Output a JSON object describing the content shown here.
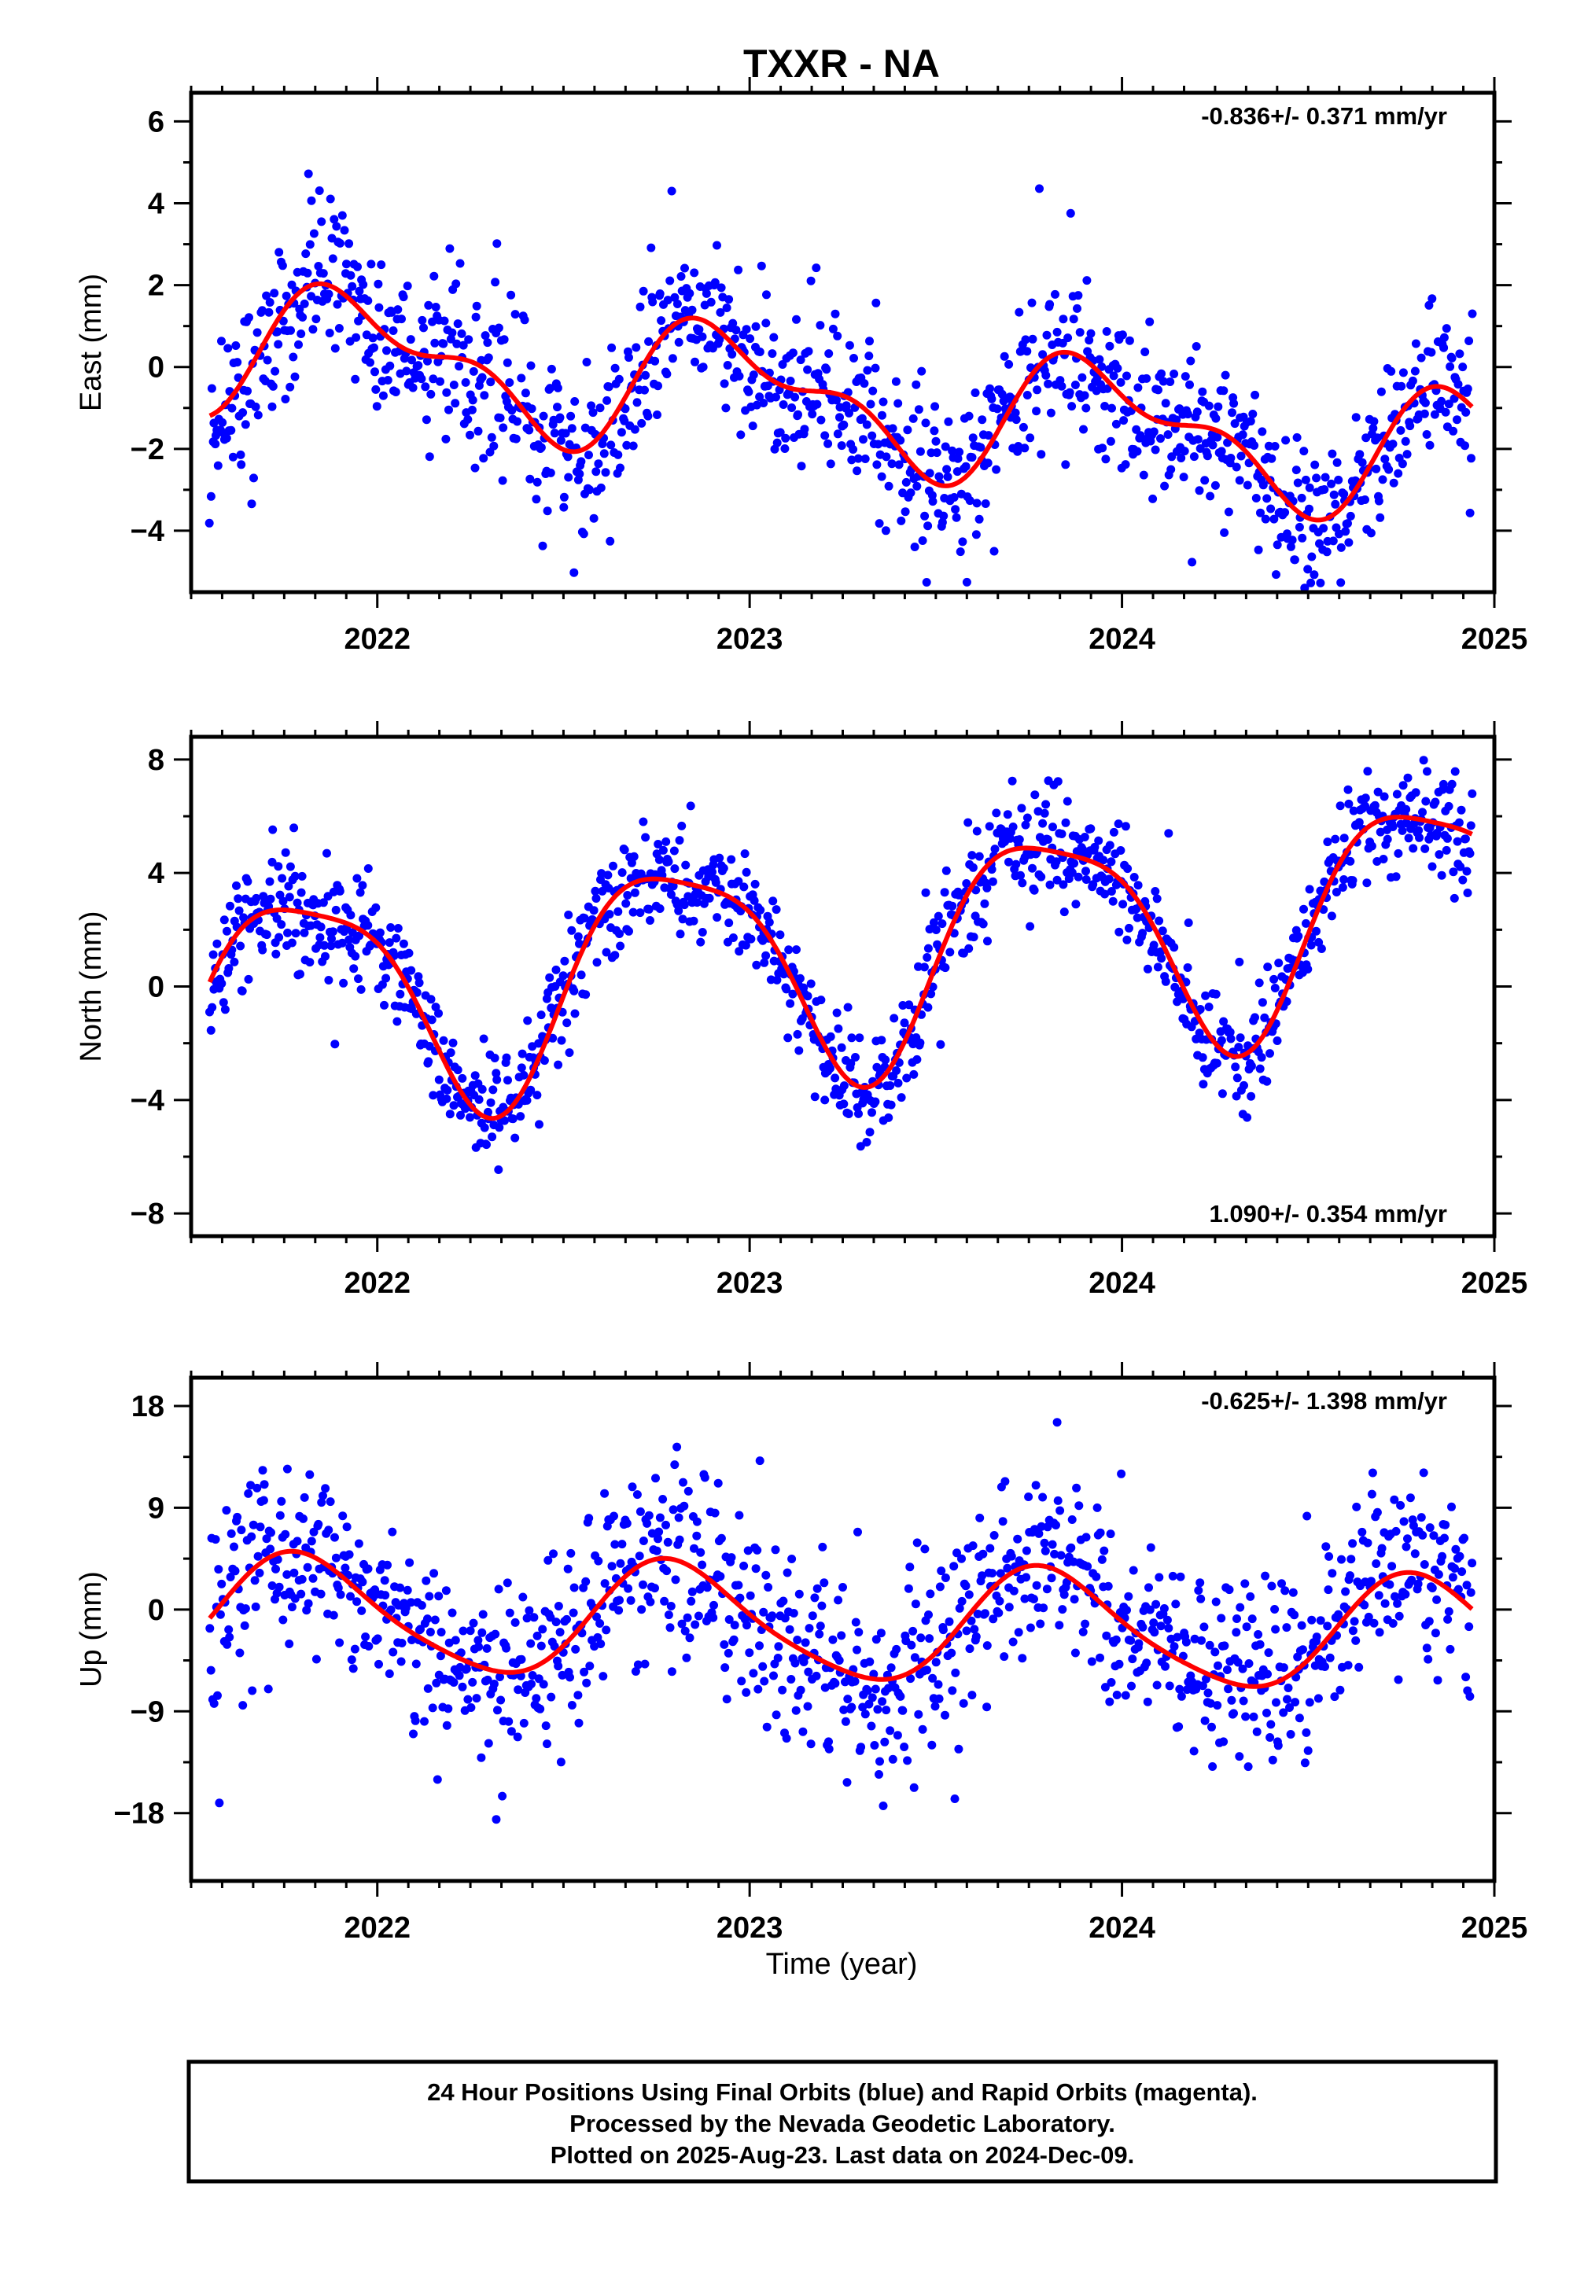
{
  "page": {
    "title": "TXXR - NA",
    "xlabel": "Time (year)",
    "footer_lines": [
      "24 Hour Positions Using Final Orbits (blue) and Rapid Orbits (magenta).",
      "Processed by the Nevada Geodetic Laboratory.",
      "Plotted on 2025-Aug-23. Last data on 2024-Dec-09."
    ]
  },
  "colors": {
    "points": "#0000ff",
    "fit": "#ff0000",
    "frame": "#000000"
  },
  "chart_data": [
    {
      "type": "scatter",
      "name": "east",
      "ylabel": "East (mm)",
      "rate_text": "-0.836+/- 0.371 mm/yr",
      "xlim": [
        2021.5,
        2025.0
      ],
      "ylim": [
        -5.5,
        6.7
      ],
      "xticks": [
        2022,
        2023,
        2024,
        2025
      ],
      "yticks": [
        -4,
        -2,
        0,
        2,
        4,
        6
      ],
      "ytick_labels": [
        "−4",
        "−2",
        "0",
        "2",
        "4",
        "6"
      ],
      "x_dates": {
        "start": 2021.55,
        "end": 2024.94,
        "count": 1200
      },
      "fit_model": {
        "offset": 0.6,
        "rate": -0.836,
        "ref_year": 2021.55,
        "components": [
          {
            "amplitude": 1.35,
            "period": 1.0,
            "phase_year": 2021.7
          },
          {
            "amplitude": 0.7,
            "period": 0.5,
            "phase_year": 2021.68
          }
        ]
      },
      "scatter_std": 0.95
    },
    {
      "type": "scatter",
      "name": "north",
      "ylabel": "North (mm)",
      "rate_text": "1.090+/- 0.354 mm/yr",
      "xlim": [
        2021.5,
        2025.0
      ],
      "ylim": [
        -8.8,
        8.8
      ],
      "xticks": [
        2022,
        2023,
        2024,
        2025
      ],
      "yticks": [
        -8,
        -4,
        0,
        4,
        8
      ],
      "ytick_labels": [
        "−8",
        "−4",
        "0",
        "4",
        "8"
      ],
      "x_dates": {
        "start": 2021.55,
        "end": 2024.94,
        "count": 1200
      },
      "fit_model": {
        "offset": -0.7,
        "rate": 1.09,
        "ref_year": 2021.55,
        "components": [
          {
            "amplitude": 3.9,
            "period": 1.0,
            "phase_year": 2021.55
          },
          {
            "amplitude": 0.9,
            "period": 0.5,
            "phase_year": 2021.45
          }
        ]
      },
      "scatter_std": 0.95
    },
    {
      "type": "scatter",
      "name": "up",
      "ylabel": "Up (mm)",
      "rate_text": "-0.625+/- 1.398 mm/yr",
      "xlim": [
        2021.5,
        2025.0
      ],
      "ylim": [
        -24,
        20.5
      ],
      "xticks": [
        2022,
        2023,
        2024,
        2025
      ],
      "yticks": [
        -18,
        -9,
        0,
        9,
        18
      ],
      "ytick_labels": [
        "−18",
        "−9",
        "0",
        "9",
        "18"
      ],
      "x_dates": {
        "start": 2021.55,
        "end": 2024.94,
        "count": 1150
      },
      "fit_model": {
        "offset": -0.3,
        "rate": -0.625,
        "ref_year": 2021.55,
        "components": [
          {
            "amplitude": 5.0,
            "period": 1.0,
            "phase_year": 2021.55
          },
          {
            "amplitude": 0.8,
            "period": 0.5,
            "phase_year": 2021.6
          }
        ]
      },
      "scatter_std": 4.2
    }
  ]
}
